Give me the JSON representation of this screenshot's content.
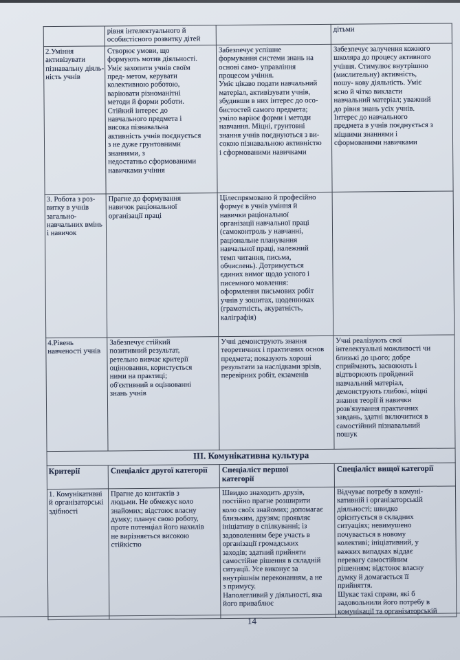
{
  "document": {
    "language": "Ukrainian",
    "page_number": "14",
    "colors": {
      "paper": "#d6dbe3",
      "ink": "#222b46",
      "table_border": "#3e4450",
      "photo_edge": "#4a4d53"
    },
    "table_top": {
      "rows": [
        {
          "cells": [
            "",
            "рівня інтелектуального й\nособистісного розвитку дітей",
            "",
            "дітьми"
          ]
        },
        {
          "cells": [
            "2.Уміння\nактивізувати\nпізнавальну діяль-\nність учнів",
            "Створює умови, що\nформують мотив діяльності.\nУміє захопити учнів своїм\nпред- метом, керувати\nколективною роботою,\nваріювати різноманітні\nметоди й форми роботи.\nСтійкий інтерес до\nнавчального предмета і\nвисока пізнавальна\nактивність учнів поєднується\nз не дуже грунтовними\nзнаннями, з\nнедостатньо сформованими\nнавичками учіння",
            "Забезпечує успішне\nформування системи знань на\nоснові само- управління\nпроцесом учіння.\nУміє цікаво подати навчальний\nматеріал, активізувати учнів,\nзбудивши в них інтерес до осо-\nбистостей самого предмета;\nуміло варіює форми і методи\nнавчання. Міцні, грунтовні\nзнання учнів поєднуються з ви-\nсокою пізнавальною активністю\nі сформованими навичками",
            "Забезпечує залучення кожного\nшколяра до процесу активного\nучіння. Стимулює внутрішню\n(мислительну) активність,\nпошу- кову діяльність. Уміє\nясно й чітко викласти\nнавчальний матеріал; уважний\nдо рівня знань усіх учнів.\nІнтерес до навчального\nпредмета в учнів поєднується з\nміцними знаннями і\nсформованими навичками"
          ]
        },
        {
          "cells": [
            "3. Робота з роз-\nвитку в учнів\nзагально-\nнавчальних вмінь\nі навичок",
            "Прагне до формування\nнавичок раціональної\nорганізації праці",
            "Цілеспрямовано й професійно\nформує в учнів уміння й\nнавички раціональної\nорганізації навчальної праці\n(самоконтроль у навчанні,\nраціональне планування\nнавчальної праці, належний\nтемп читання, письма,\nобчислень). Дотримується\nєдиних вимог щодо усного і\nписемного мовлення:\nоформлення письмових робіт\nучнів у зошитах, щоденниках\n(грамотність, акуратність,\nкаліграфія)",
            ""
          ]
        },
        {
          "cells": [
            "4.Рівень\nнавченості учнів",
            "Забезпечує стійкий\nпозитивний результат,\nретельно вивчає критерії\nоцінювання, користується\nними на практиці;\nоб'єктивний в оцінюванні\nзнань учнів",
            "Учні демонструють знання\nтеоретичних і практичних основ\nпредмета; показують хороші\nрезультати за наслідками зрізів,\nперевірних робіт, екзаменів",
            "Учні реалізують свої\nінтелектуальні можливості чи\nблизькі до цього; добре\nсприймають, засвоюють і\nвідтворюють пройдений\nнавчальний матеріал,\nдемонструють глибокі, міцні\nзнання теорії й навички\nрозв'язування практичних\nзавдань, здатні включитися в\nсамостійний пізнавальний\nпошук"
          ]
        }
      ]
    },
    "section3": {
      "title": "ІІІ. Комунікативна культура",
      "headers": [
        "Критерії",
        "Спеціаліст другої категорії",
        "Спеціаліст першої\nкатегорії",
        "Спеціаліст вищої категорії"
      ],
      "rows": [
        {
          "cells": [
            "1. Комунікативні\nй організаторські\nздібності",
            "Прагне до контактів з\nлюдьми. Не обмежує коло\nзнайомих; відстоює власну\nдумку; планує свою роботу,\nпроте потенціал його нахилів\nне вирізняється високою\nстійкістю",
            "Швидко знаходить друзів,\nпостійно прагне розширити\nколо своїх знайомих; допомагає\nблизьким, друзям; проявляє\nініціативу в спілкуванні; із\nзадоволенням бере участь в\nорганізації громадських\nзаходів; здатний прийняти\nсамостійне рішення в складній\nситуації. Усе виконує за\nвнутрішнім переконанням, а не\nз примусу.\nНаполегливий у діяльності, яка\nйого приваблює",
            "Відчуває потребу в комуні-\nкативній і організаторській\nдіяльності; швидко\nорієнтується в складних\nситуаціях; невимушено\nпочувається в новому\nколективі; ініціативний, у\nважких випадках віддає\nперевагу самостійним\nрішенням; відстоює власну\nдумку й домагається її\nприйняття.\nШукає такі справи, які б\nзадовольнили його потребу в\nкомунікації та організаторській"
          ]
        }
      ]
    }
  }
}
